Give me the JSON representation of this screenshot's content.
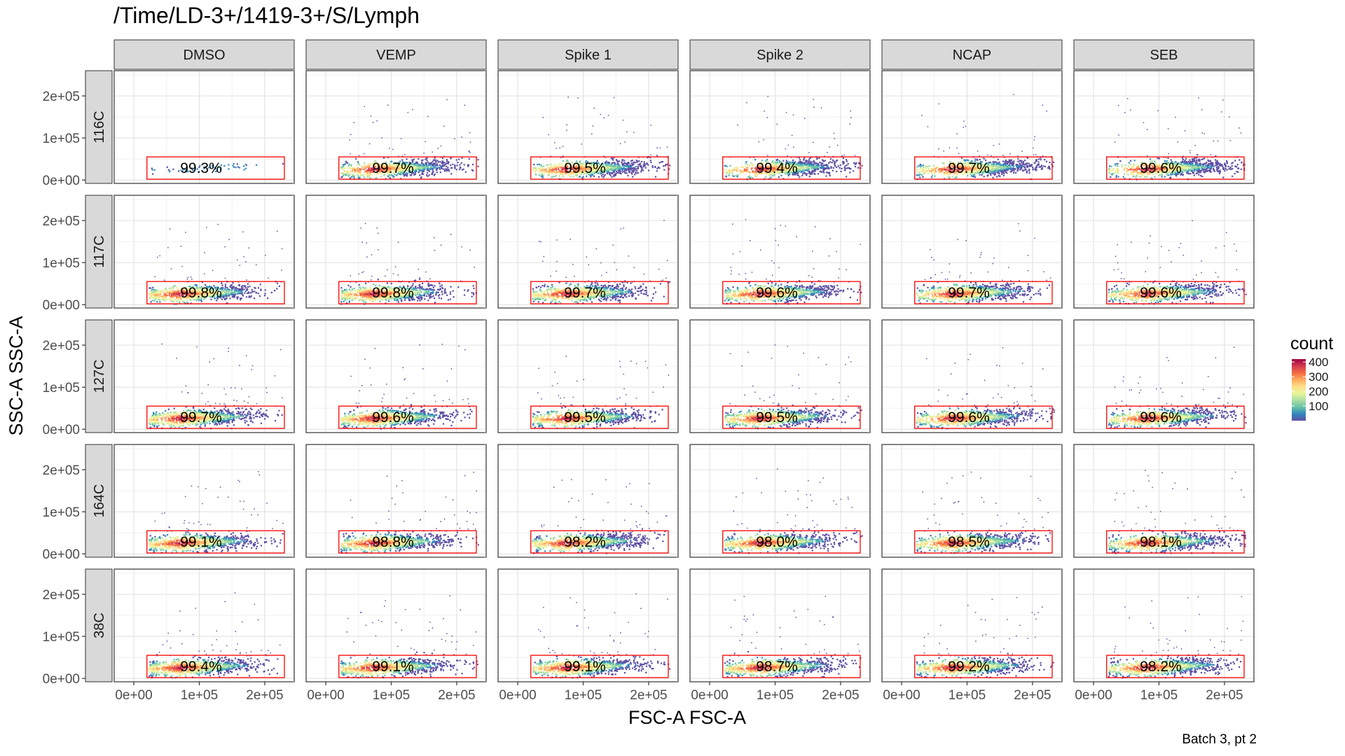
{
  "title": "/Time/LD-3+/1419-3+/S/Lymph",
  "caption": "Batch 3, pt 2",
  "chart_data": {
    "type": "scatter",
    "subtype": "faceted 2D density (flow cytometry)",
    "xlabel": "FSC-A FSC-A",
    "ylabel": "SSC-A SSC-A",
    "xlim": [
      -30000,
      245000
    ],
    "ylim": [
      -8000,
      260000
    ],
    "x_ticks": [
      {
        "value": 0,
        "label": "0e+00"
      },
      {
        "value": 100000,
        "label": "1e+05"
      },
      {
        "value": 200000,
        "label": "2e+05"
      }
    ],
    "y_ticks": [
      {
        "value": 0,
        "label": "0e+00"
      },
      {
        "value": 100000,
        "label": "1e+05"
      },
      {
        "value": 200000,
        "label": "2e+05"
      }
    ],
    "columns": [
      "DMSO",
      "VEMP",
      "Spike 1",
      "Spike 2",
      "NCAP",
      "SEB"
    ],
    "rows": [
      "116C",
      "117C",
      "127C",
      "164C",
      "38C"
    ],
    "gate": {
      "x": [
        20000,
        230000
      ],
      "y": [
        2000,
        55000
      ],
      "color": "#ff0000"
    },
    "percentages": [
      [
        "99.3%",
        "99.7%",
        "99.5%",
        "99.4%",
        "99.7%",
        "99.6%"
      ],
      [
        "99.8%",
        "99.8%",
        "99.7%",
        "99.6%",
        "99.7%",
        "99.6%"
      ],
      [
        "99.7%",
        "99.6%",
        "99.5%",
        "99.5%",
        "99.6%",
        "99.6%"
      ],
      [
        "99.1%",
        "98.8%",
        "98.2%",
        "98.0%",
        "98.5%",
        "98.1%"
      ],
      [
        "99.4%",
        "99.1%",
        "99.1%",
        "98.7%",
        "99.2%",
        "98.2%"
      ]
    ],
    "legend": {
      "title": "count",
      "ticks": [
        {
          "value": 100,
          "label": "100"
        },
        {
          "value": 200,
          "label": "200"
        },
        {
          "value": 300,
          "label": "300"
        },
        {
          "value": 400,
          "label": "400"
        }
      ],
      "range": [
        0,
        420
      ],
      "palette": [
        "#5e4fa2",
        "#3288bd",
        "#66c2a5",
        "#abdda4",
        "#e6f598",
        "#fee08b",
        "#fdae61",
        "#f46d43",
        "#d53e4f",
        "#9e0142"
      ],
      "placement": "right"
    }
  }
}
